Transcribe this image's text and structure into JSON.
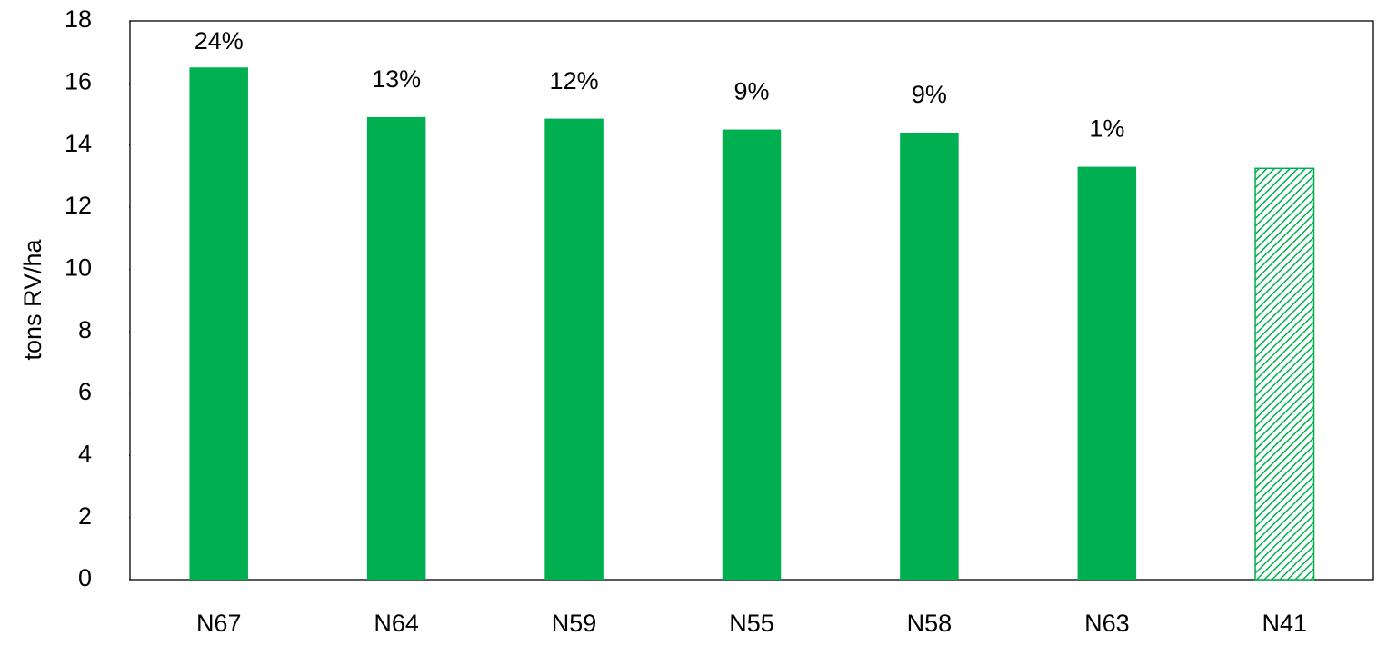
{
  "chart_data": {
    "type": "bar",
    "y_label": "tons RV/ha",
    "categories": [
      "N67",
      "N64",
      "N59",
      "N55",
      "N58",
      "N63",
      "N41"
    ],
    "values": [
      16.5,
      14.9,
      14.85,
      14.5,
      14.4,
      13.3,
      13.25
    ],
    "annotations": [
      "24%",
      "13%",
      "12%",
      "9%",
      "9%",
      "1%",
      null
    ],
    "color": "#00b050",
    "fills": [
      "solid",
      "solid",
      "solid",
      "solid",
      "solid",
      "solid",
      "hatch"
    ],
    "ylim": [
      0,
      18
    ],
    "yticks": [
      0,
      2,
      4,
      6,
      8,
      10,
      12,
      14,
      16,
      18
    ],
    "grid": false
  }
}
